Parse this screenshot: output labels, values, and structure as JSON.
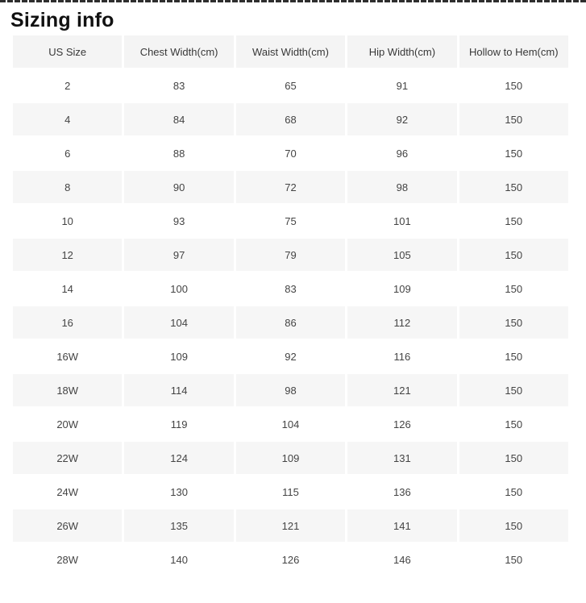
{
  "page": {
    "title": "Sizing info"
  },
  "colors": {
    "row_alt_bg": "#f6f6f6",
    "header_bg": "#f4f4f4",
    "text": "#444444",
    "title_text": "#111111"
  },
  "table": {
    "columns": [
      "US Size",
      "Chest Width(cm)",
      "Waist Width(cm)",
      "Hip Width(cm)",
      "Hollow to Hem(cm)"
    ],
    "rows": [
      [
        "2",
        "83",
        "65",
        "91",
        "150"
      ],
      [
        "4",
        "84",
        "68",
        "92",
        "150"
      ],
      [
        "6",
        "88",
        "70",
        "96",
        "150"
      ],
      [
        "8",
        "90",
        "72",
        "98",
        "150"
      ],
      [
        "10",
        "93",
        "75",
        "101",
        "150"
      ],
      [
        "12",
        "97",
        "79",
        "105",
        "150"
      ],
      [
        "14",
        "100",
        "83",
        "109",
        "150"
      ],
      [
        "16",
        "104",
        "86",
        "112",
        "150"
      ],
      [
        "16W",
        "109",
        "92",
        "116",
        "150"
      ],
      [
        "18W",
        "114",
        "98",
        "121",
        "150"
      ],
      [
        "20W",
        "119",
        "104",
        "126",
        "150"
      ],
      [
        "22W",
        "124",
        "109",
        "131",
        "150"
      ],
      [
        "24W",
        "130",
        "115",
        "136",
        "150"
      ],
      [
        "26W",
        "135",
        "121",
        "141",
        "150"
      ],
      [
        "28W",
        "140",
        "126",
        "146",
        "150"
      ]
    ]
  }
}
